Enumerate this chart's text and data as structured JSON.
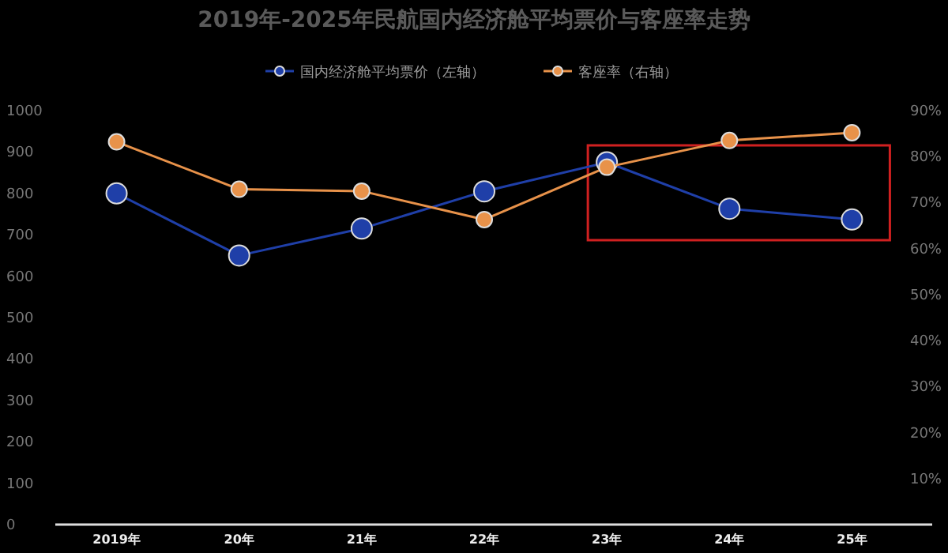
{
  "chart_data": {
    "type": "line",
    "title": "2019年-2025年民航国内经济舱平均票价与客座率走势",
    "categories": [
      "2019年",
      "20年",
      "21年",
      "22年",
      "23年",
      "24年",
      "25年"
    ],
    "ylim": [
      0,
      1000
    ],
    "yticks": [
      0,
      100,
      200,
      300,
      400,
      500,
      600,
      700,
      800,
      900,
      1000
    ],
    "y2lim": [
      0,
      90
    ],
    "y2ticks": [
      {
        "value": 10,
        "label": "10%"
      },
      {
        "value": 20,
        "label": "20%"
      },
      {
        "value": 30,
        "label": "30%"
      },
      {
        "value": 40,
        "label": "40%"
      },
      {
        "value": 50,
        "label": "50%"
      },
      {
        "value": 60,
        "label": "60%"
      },
      {
        "value": 70,
        "label": "70%"
      },
      {
        "value": 80,
        "label": "80%"
      },
      {
        "value": 90,
        "label": "90%"
      }
    ],
    "legend": "top",
    "marker": "circle",
    "grid": false,
    "series": [
      {
        "name": "国内经济舱平均票价（左轴）",
        "color": "#1f3fa8",
        "values": [
          800,
          650,
          715,
          805,
          875,
          763,
          737
        ]
      },
      {
        "name": "客座率（右轴）",
        "color": "#e8924a",
        "axis": "y2",
        "values": [
          83.2,
          72.9,
          72.5,
          66.3,
          77.7,
          83.5,
          85.2
        ]
      }
    ]
  }
}
